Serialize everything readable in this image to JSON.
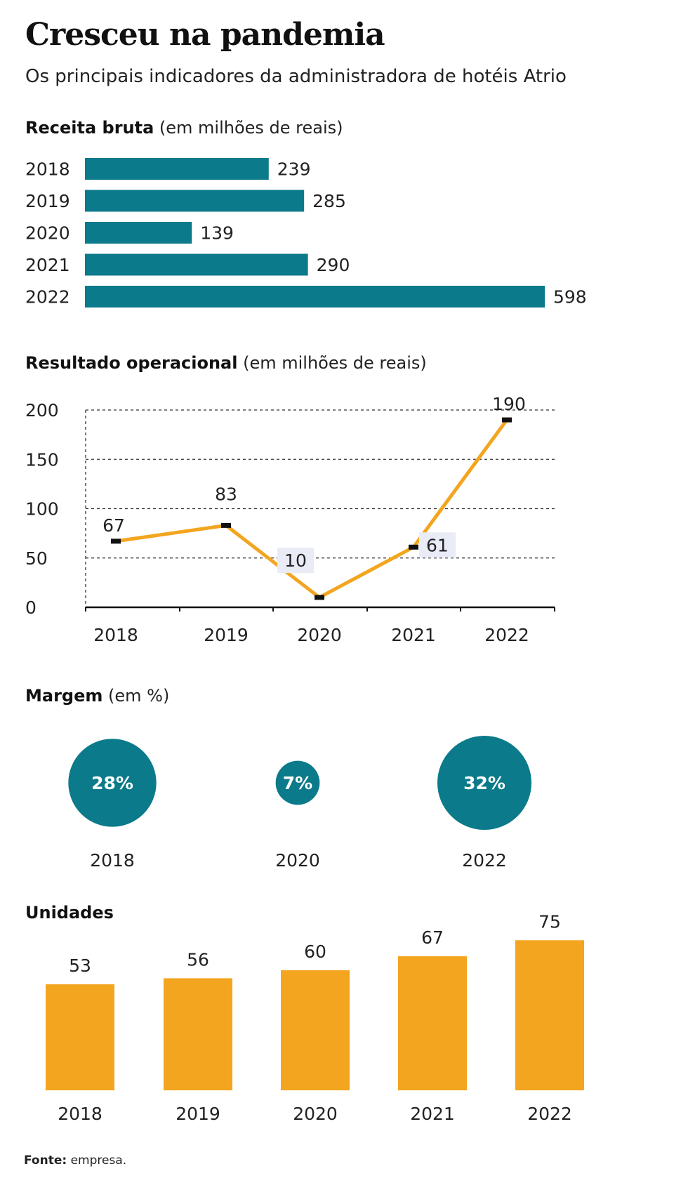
{
  "title": "Cresceu na pandemia",
  "subtitle": "Os principais indicadores da administradora de hotéis Atrio",
  "colors": {
    "teal": "#0b7a8a",
    "orange": "#f3a51f",
    "label_bg": "#e9ecf6"
  },
  "sections": {
    "receita": {
      "title_bold": "Receita bruta",
      "title_rest": " (em milhões de reais)"
    },
    "resultado": {
      "title_bold": "Resultado operacional",
      "title_rest": " (em milhões de reais)"
    },
    "margem": {
      "title_bold": "Margem",
      "title_rest": " (em %)"
    },
    "unidades": {
      "title_bold": "Unidades",
      "title_rest": ""
    }
  },
  "footer": {
    "label": "Fonte:",
    "text": " empresa."
  },
  "chart_data": [
    {
      "type": "bar",
      "orientation": "horizontal",
      "title": "Receita bruta (em milhões de reais)",
      "categories": [
        "2018",
        "2019",
        "2020",
        "2021",
        "2022"
      ],
      "values": [
        239,
        285,
        139,
        290,
        598
      ],
      "labels": [
        "239",
        "285",
        "139",
        "290",
        "598"
      ],
      "xlim": [
        0,
        598
      ],
      "grid": false
    },
    {
      "type": "line",
      "title": "Resultado operacional (em milhões de reais)",
      "categories": [
        "2018",
        "2019",
        "2020",
        "2021",
        "2022"
      ],
      "values": [
        67,
        83,
        10,
        61,
        190
      ],
      "labels": [
        "67",
        "83",
        "10",
        "61",
        "190"
      ],
      "ylim": [
        0,
        200
      ],
      "yticks": [
        0,
        50,
        100,
        150,
        200
      ],
      "ytick_labels": [
        "0",
        "50",
        "100",
        "150",
        "200"
      ],
      "grid": true
    },
    {
      "type": "bubble",
      "title": "Margem (em %)",
      "categories": [
        "2018",
        "2020",
        "2022"
      ],
      "values": [
        28,
        7,
        32
      ],
      "labels": [
        "28%",
        "7%",
        "32%"
      ]
    },
    {
      "type": "bar",
      "title": "Unidades",
      "categories": [
        "2018",
        "2019",
        "2020",
        "2021",
        "2022"
      ],
      "values": [
        53,
        56,
        60,
        67,
        75
      ],
      "labels": [
        "53",
        "56",
        "60",
        "67",
        "75"
      ],
      "grid": false
    }
  ]
}
